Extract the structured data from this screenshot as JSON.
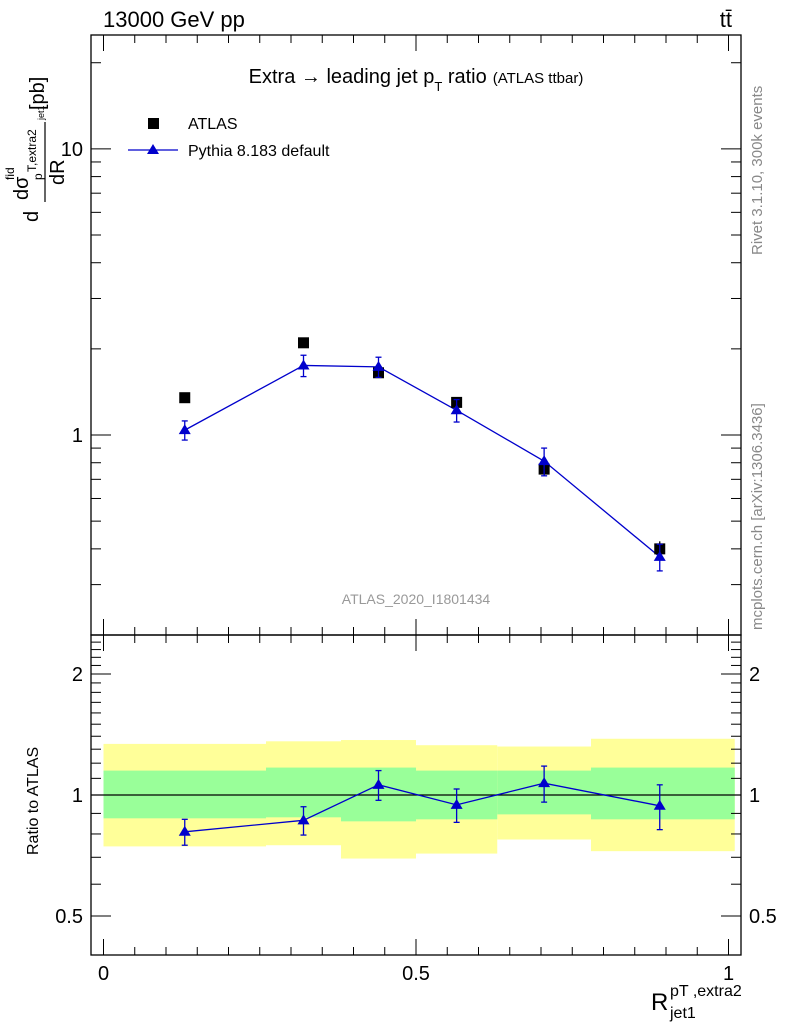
{
  "header": {
    "energy_label": "13000 GeV pp",
    "process_label": "tt̄"
  },
  "side_labels": {
    "rivet": "Rivet 3.1.10,  300k events",
    "mcplots": "mcplots.cern.ch [arXiv:1306.3436]"
  },
  "chart_data": [
    {
      "type": "scatter",
      "panel": "main",
      "title_main": "Extra → leading jet p",
      "title_sub": "T",
      "title_rest": " ratio",
      "title_small": "(ATLAS ttbar)",
      "ylabel_parts": {
        "d1": "d",
        "sigma": "dσ",
        "fid": "fid",
        "p": "p",
        "extra2": "T,extra2",
        "jet1": "jet1",
        "dR": "dR",
        "unit": "[pb]"
      },
      "yscale": "log",
      "ylim": [
        0.2,
        25
      ],
      "xlim": [
        -0.02,
        1.02
      ],
      "yticks_labeled": [
        1,
        10
      ],
      "watermark": "ATLAS_2020_I1801434",
      "legend": {
        "position": "top-left",
        "entries": [
          "ATLAS",
          "Pythia 8.183 default"
        ]
      },
      "series": [
        {
          "name": "ATLAS",
          "color": "#000000",
          "marker": "square",
          "x": [
            0.13,
            0.32,
            0.44,
            0.565,
            0.705,
            0.89
          ],
          "y": [
            1.35,
            2.1,
            1.65,
            1.3,
            0.76,
            0.4
          ],
          "yerr": [
            0.02,
            0.03,
            0.04,
            0.03,
            0.04,
            0.025
          ]
        },
        {
          "name": "Pythia 8.183 default",
          "color": "#0000cc",
          "marker": "triangle",
          "x": [
            0.13,
            0.32,
            0.44,
            0.565,
            0.705,
            0.89
          ],
          "y": [
            1.04,
            1.75,
            1.73,
            1.22,
            0.81,
            0.375
          ],
          "yerr": [
            0.08,
            0.15,
            0.14,
            0.11,
            0.09,
            0.04
          ]
        }
      ]
    },
    {
      "type": "scatter",
      "panel": "ratio",
      "ylabel": "Ratio to ATLAS",
      "xlabel_main": "R",
      "xlabel_sup": "pT ,extra2",
      "xlabel_sub": "jet1",
      "yscale": "log",
      "ylim": [
        0.4,
        2.5
      ],
      "xlim": [
        -0.02,
        1.02
      ],
      "xticks": [
        0,
        0.5,
        1
      ],
      "xtick_labels": [
        "0",
        "0.5",
        "1"
      ],
      "yticks": [
        0.5,
        1,
        2
      ],
      "ytick_labels": [
        "0.5",
        "1",
        "2"
      ],
      "bands": [
        {
          "x0": 0.0,
          "x1": 0.26,
          "yellow": [
            0.745,
            1.34
          ],
          "green": [
            0.875,
            1.15
          ]
        },
        {
          "x0": 0.26,
          "x1": 0.38,
          "yellow": [
            0.75,
            1.36
          ],
          "green": [
            0.88,
            1.17
          ]
        },
        {
          "x0": 0.38,
          "x1": 0.5,
          "yellow": [
            0.695,
            1.37
          ],
          "green": [
            0.86,
            1.17
          ]
        },
        {
          "x0": 0.5,
          "x1": 0.63,
          "yellow": [
            0.715,
            1.33
          ],
          "green": [
            0.87,
            1.15
          ]
        },
        {
          "x0": 0.63,
          "x1": 0.78,
          "yellow": [
            0.775,
            1.32
          ],
          "green": [
            0.895,
            1.15
          ]
        },
        {
          "x0": 0.78,
          "x1": 1.01,
          "yellow": [
            0.725,
            1.38
          ],
          "green": [
            0.87,
            1.17
          ]
        }
      ],
      "series": [
        {
          "name": "Pythia 8.183 default / ATLAS",
          "color": "#0000cc",
          "marker": "triangle",
          "x": [
            0.13,
            0.32,
            0.44,
            0.565,
            0.705,
            0.89
          ],
          "y": [
            0.81,
            0.865,
            1.06,
            0.945,
            1.07,
            0.94
          ],
          "yerr": [
            0.06,
            0.07,
            0.09,
            0.09,
            0.11,
            0.12
          ]
        }
      ]
    }
  ]
}
